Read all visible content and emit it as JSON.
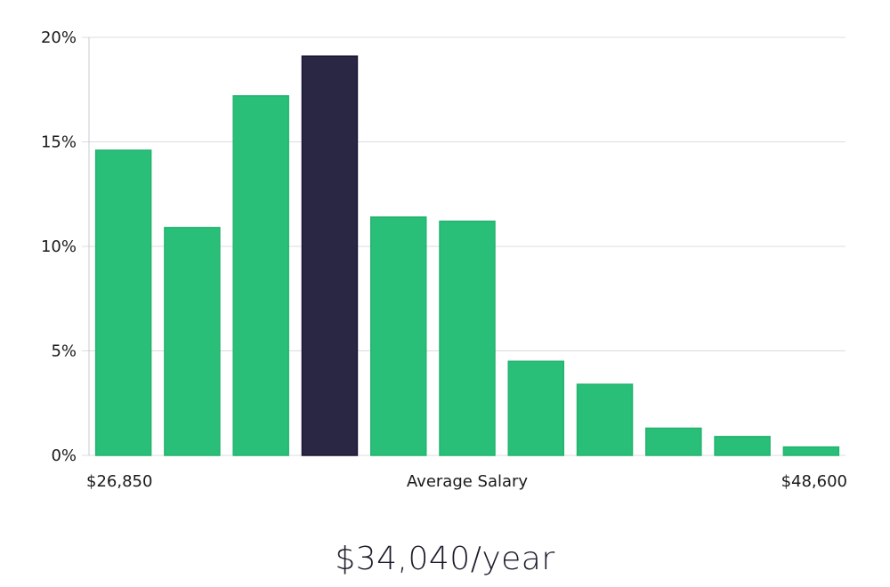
{
  "chart_data": {
    "type": "bar",
    "title": "",
    "xlabel": "Average Salary",
    "ylabel": "",
    "x_min_label": "$26,850",
    "x_max_label": "$48,600",
    "ylim": [
      0,
      20
    ],
    "yticks": [
      0,
      5,
      10,
      15,
      20
    ],
    "ytick_labels": [
      "0%",
      "5%",
      "10%",
      "15%",
      "20%"
    ],
    "grid": true,
    "values": [
      14.6,
      10.9,
      17.2,
      19.1,
      11.4,
      11.2,
      4.5,
      3.4,
      1.3,
      0.9,
      0.4
    ],
    "highlight_index": 3,
    "colors": {
      "bar": "#2abf78",
      "bar_edge": "#22b36e",
      "highlight": "#2a2745",
      "highlight_edge": "#1b1838",
      "grid": "#dcdce2",
      "axis": "#c8c8cc"
    }
  },
  "salary": {
    "label": "$34,040/year"
  }
}
